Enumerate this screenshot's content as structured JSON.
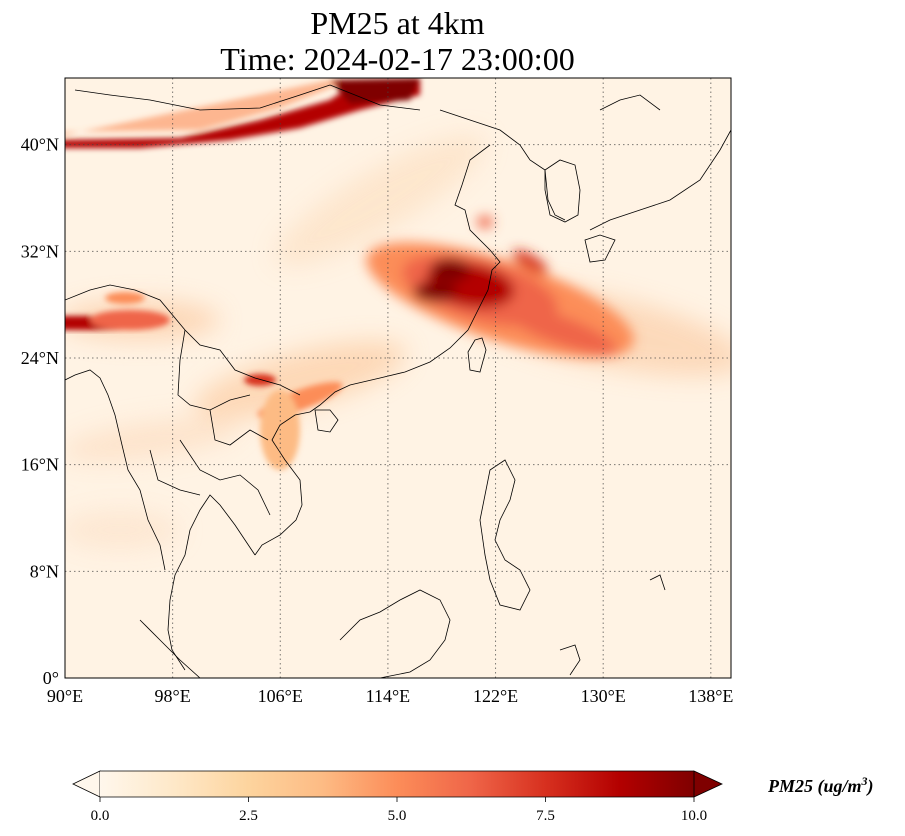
{
  "title_line1": "PM25 at 4km",
  "title_line2": "Time: 2024-02-17 23:00:00",
  "map": {
    "extent": {
      "lon_min": 90,
      "lon_max": 139.5,
      "lat_min": 0,
      "lat_max": 45
    },
    "lon_ticks": [
      90,
      98,
      106,
      114,
      122,
      130,
      138
    ],
    "lon_tick_labels": [
      "90°E",
      "98°E",
      "106°E",
      "114°E",
      "122°E",
      "130°E",
      "138°E"
    ],
    "lat_ticks": [
      0,
      8,
      16,
      24,
      32,
      40
    ],
    "lat_tick_labels": [
      "0°",
      "8°N",
      "16°N",
      "24°N",
      "32°N",
      "40°N"
    ],
    "gridlines": "dotted"
  },
  "colorbar": {
    "label_text": "PM25 (ug/m",
    "label_exp": "3",
    "label_close": ")",
    "min": 0.0,
    "max": 10.0,
    "ticks": [
      0.0,
      2.5,
      5.0,
      7.5,
      10.0
    ],
    "tick_labels": [
      "0.0",
      "2.5",
      "5.0",
      "7.5",
      "10.0"
    ],
    "colormap": "OrRd",
    "extend": "both",
    "colors": [
      "#fff7ec",
      "#fee8c8",
      "#fdd49e",
      "#fdbb84",
      "#fc8d59",
      "#ef6548",
      "#d7301f",
      "#b30000",
      "#7f0000"
    ]
  },
  "plumes": [
    {
      "name": "north-band",
      "lon": [
        90,
        100,
        108,
        114,
        118
      ],
      "lat": [
        40.2,
        40.0,
        41.3,
        42.6,
        44.5
      ],
      "value": 9.5
    },
    {
      "name": "east-china-plume",
      "lon": 119.5,
      "lat": 29.5,
      "value": 9.2
    },
    {
      "name": "western-band",
      "lon": [
        90,
        96
      ],
      "lat": 26.8,
      "value": 7.5
    },
    {
      "name": "vietnam-plume",
      "lon": 105,
      "lat": 22.3,
      "value": 6.0
    }
  ]
}
